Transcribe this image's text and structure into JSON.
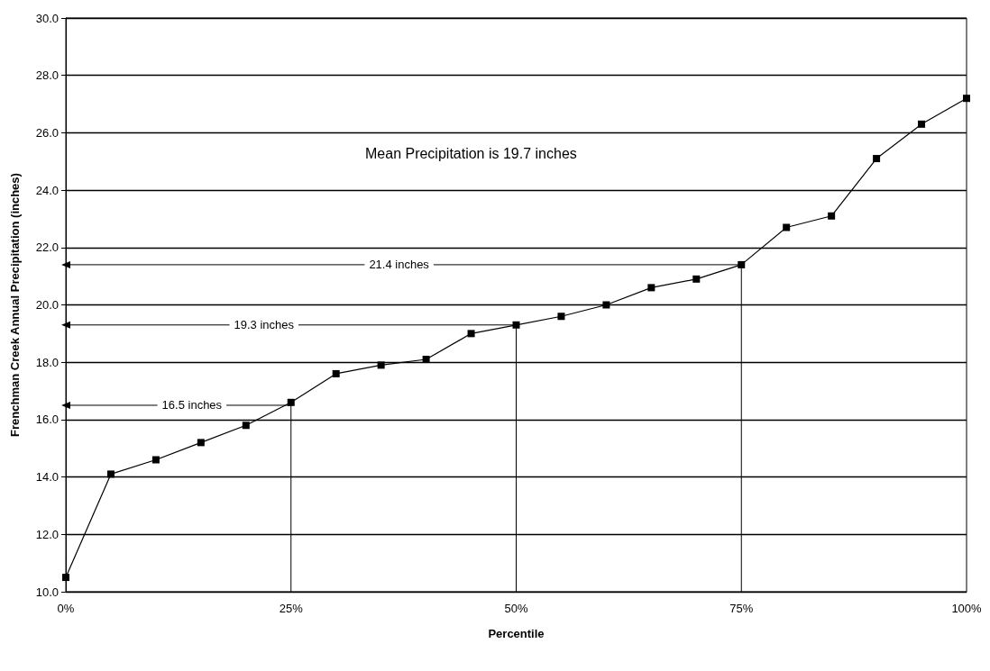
{
  "chart_data": {
    "type": "line",
    "xlabel": "Percentile",
    "ylabel": "Frenchman Creek Annual Precipitation (inches)",
    "x": [
      0,
      5,
      10,
      15,
      20,
      25,
      30,
      35,
      40,
      45,
      50,
      55,
      60,
      65,
      70,
      75,
      80,
      85,
      90,
      95,
      100
    ],
    "series": [
      {
        "color": "#000000",
        "values": [
          10.5,
          14.1,
          14.6,
          15.2,
          15.8,
          16.6,
          17.6,
          17.9,
          18.1,
          19.0,
          19.3,
          19.6,
          20.0,
          20.6,
          20.9,
          21.4,
          22.7,
          23.1,
          25.1,
          26.3,
          27.2
        ]
      },
      {
        "color": "#000000",
        "x": [
          25,
          0
        ],
        "values": [
          16.5,
          16.5
        ],
        "marker": "triangle"
      },
      {
        "color": "#000000",
        "x": [
          50,
          0
        ],
        "values": [
          19.3,
          19.3
        ],
        "marker": "triangle"
      },
      {
        "color": "#000000",
        "x": [
          75,
          0
        ],
        "values": [
          21.4,
          21.4
        ],
        "marker": "triangle"
      },
      {
        "color": "#000000",
        "x": [
          25,
          25
        ],
        "values": [
          16.5,
          10
        ],
        "marker": "none"
      },
      {
        "color": "#000000",
        "x": [
          50,
          50
        ],
        "values": [
          19.3,
          10
        ],
        "marker": "none"
      },
      {
        "color": "#000000",
        "x": [
          75,
          75
        ],
        "values": [
          21.4,
          10
        ],
        "marker": "none"
      }
    ],
    "xlim": [
      0,
      100
    ],
    "xticks": [
      {
        "value": 0,
        "label": "0%"
      },
      {
        "value": 25,
        "label": "25%"
      },
      {
        "value": 50,
        "label": "50%"
      },
      {
        "value": 75,
        "label": "75%"
      },
      {
        "value": 100,
        "label": "100%"
      }
    ],
    "ylim": [
      10,
      30
    ],
    "yticks": [
      {
        "value": 10,
        "label": "10.0"
      },
      {
        "value": 12,
        "label": "12.0"
      },
      {
        "value": 14,
        "label": "14.0"
      },
      {
        "value": 16,
        "label": "16.0"
      },
      {
        "value": 18,
        "label": "18.0"
      },
      {
        "value": 20,
        "label": "20.0"
      },
      {
        "value": 22,
        "label": "22.0"
      },
      {
        "value": 24,
        "label": "24.0"
      },
      {
        "value": 26,
        "label": "26.0"
      },
      {
        "value": 28,
        "label": "28.0"
      },
      {
        "value": 30,
        "label": "30.0"
      }
    ],
    "annotations": [
      "Mean Precipitation is 19.7 inches",
      {
        "text": "16.5 inches",
        "x": 14,
        "y": 16.5
      },
      {
        "text": "19.3 inches",
        "x": 22,
        "y": 19.3
      },
      {
        "text": "21.4 inches",
        "x": 37,
        "y": 21.4
      }
    ],
    "grid": "y",
    "marker": "square",
    "line_style": "solid"
  }
}
